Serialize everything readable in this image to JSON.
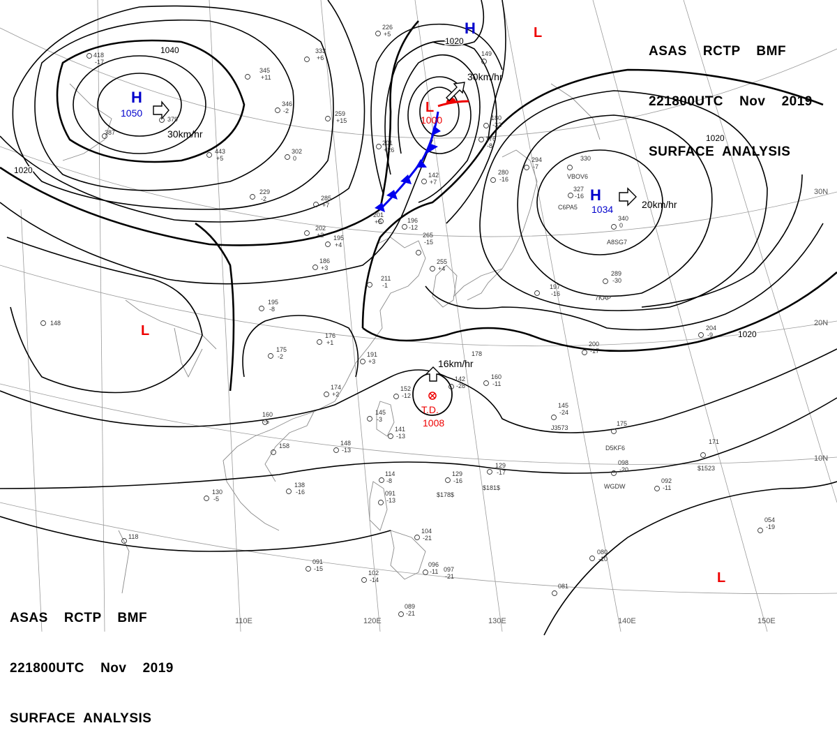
{
  "header": {
    "line1": "ASAS    RCTP    BMF",
    "line2": "221800UTC    Nov    2019",
    "line3": "SURFACE  ANALYSIS"
  },
  "highs": [
    {
      "symbol": "H",
      "pressure": "1050",
      "motion": "30km/hr"
    },
    {
      "symbol": "H",
      "pressure": "1034",
      "motion": "20km/hr"
    },
    {
      "symbol": "H",
      "pressure": ""
    }
  ],
  "lows": [
    {
      "symbol": "L",
      "pressure": "1000",
      "motion": "30km/hr"
    },
    {
      "symbol": "L",
      "pressure": ""
    },
    {
      "symbol": "L",
      "pressure": ""
    },
    {
      "symbol": "L",
      "pressure": ""
    }
  ],
  "tropical_depression": {
    "label": "T.D.",
    "pressure": "1008",
    "motion": "16km/hr"
  },
  "isobar_labels": [
    "1040",
    "1020",
    "1020",
    "1020",
    "1020"
  ],
  "latitude_labels": [
    "30N",
    "20N",
    "10N"
  ],
  "longitude_labels": [
    "110E",
    "120E",
    "130E",
    "140E",
    "150E"
  ],
  "stations": [
    {
      "id": "418",
      "v": "-17"
    },
    {
      "id": "387",
      "v": ""
    },
    {
      "id": "379",
      "v": ""
    },
    {
      "id": "443",
      "v": "+5"
    },
    {
      "id": "345",
      "v": "+11"
    },
    {
      "id": "333",
      "v": "+6"
    },
    {
      "id": "346",
      "v": "-2"
    },
    {
      "id": "302",
      "v": "0"
    },
    {
      "id": "259",
      "v": "+15"
    },
    {
      "id": "226",
      "v": "+5"
    },
    {
      "id": "201",
      "v": "+26"
    },
    {
      "id": "180",
      "v": "-32"
    },
    {
      "id": "149",
      "v": ""
    },
    {
      "id": "176",
      "v": "-8"
    },
    {
      "id": "280",
      "v": "-16"
    },
    {
      "id": "294",
      "v": "-7"
    },
    {
      "id": "330",
      "v": ""
    },
    {
      "id": "327",
      "v": "-16"
    },
    {
      "id": "340",
      "v": "0"
    },
    {
      "id": "289",
      "v": "-30"
    },
    {
      "id": "197",
      "v": "-16"
    },
    {
      "id": "229",
      "v": "-2"
    },
    {
      "id": "285",
      "v": "+7"
    },
    {
      "id": "202",
      "v": "+2"
    },
    {
      "id": "195",
      "v": "+4"
    },
    {
      "id": "196",
      "v": "-12"
    },
    {
      "id": "142",
      "v": "+7"
    },
    {
      "id": "201",
      "v": "+6"
    },
    {
      "id": "265",
      "v": "-15"
    },
    {
      "id": "255",
      "v": "+4"
    },
    {
      "id": "211",
      "v": "-1"
    },
    {
      "id": "186",
      "v": "+3"
    },
    {
      "id": "195",
      "v": "-8"
    },
    {
      "id": "176",
      "v": "+1"
    },
    {
      "id": "191",
      "v": "+3"
    },
    {
      "id": "175",
      "v": "-2"
    },
    {
      "id": "148",
      "v": ""
    },
    {
      "id": "174",
      "v": "+2"
    },
    {
      "id": "152",
      "v": "-12"
    },
    {
      "id": "142",
      "v": "-28"
    },
    {
      "id": "160",
      "v": "-11"
    },
    {
      "id": "178",
      "v": ""
    },
    {
      "id": "145",
      "v": "-3"
    },
    {
      "id": "141",
      "v": "-13"
    },
    {
      "id": "160",
      "v": "-5"
    },
    {
      "id": "158",
      "v": ""
    },
    {
      "id": "148",
      "v": "-13"
    },
    {
      "id": "138",
      "v": "-16"
    },
    {
      "id": "130",
      "v": "-5"
    },
    {
      "id": "114",
      "v": "-8"
    },
    {
      "id": "091",
      "v": "-13"
    },
    {
      "id": "129",
      "v": "-16"
    },
    {
      "id": "129",
      "v": "-17"
    },
    {
      "id": "145",
      "v": "-24"
    },
    {
      "id": "175",
      "v": ""
    },
    {
      "id": "171",
      "v": ""
    },
    {
      "id": "098",
      "v": "-20"
    },
    {
      "id": "092",
      "v": "-11"
    },
    {
      "id": "054",
      "v": "-19"
    },
    {
      "id": "104",
      "v": "-21"
    },
    {
      "id": "096",
      "v": "-11"
    },
    {
      "id": "097",
      "v": "-21"
    },
    {
      "id": "091",
      "v": "-15"
    },
    {
      "id": "102",
      "v": "-14"
    },
    {
      "id": "089",
      "v": "-21"
    },
    {
      "id": "118",
      "v": ""
    },
    {
      "id": "080",
      "v": "-10"
    },
    {
      "id": "081",
      "v": ""
    },
    {
      "id": "204",
      "v": "-9"
    },
    {
      "id": "200",
      "v": "-17"
    }
  ],
  "ship_ids": [
    "VBOV6",
    "C6PA5",
    "A8SG7",
    "7KAP",
    "D5KF6",
    "J3573",
    "WGDW",
    "$1523",
    "$178$",
    "$181$"
  ],
  "colors": {
    "high": "#0000cc",
    "low": "#ee0000",
    "front_cold": "#0000ee",
    "front_warm": "#ee0000",
    "isobar": "#000000",
    "grid": "#9a9a9a",
    "coast": "#8a8a8a"
  }
}
